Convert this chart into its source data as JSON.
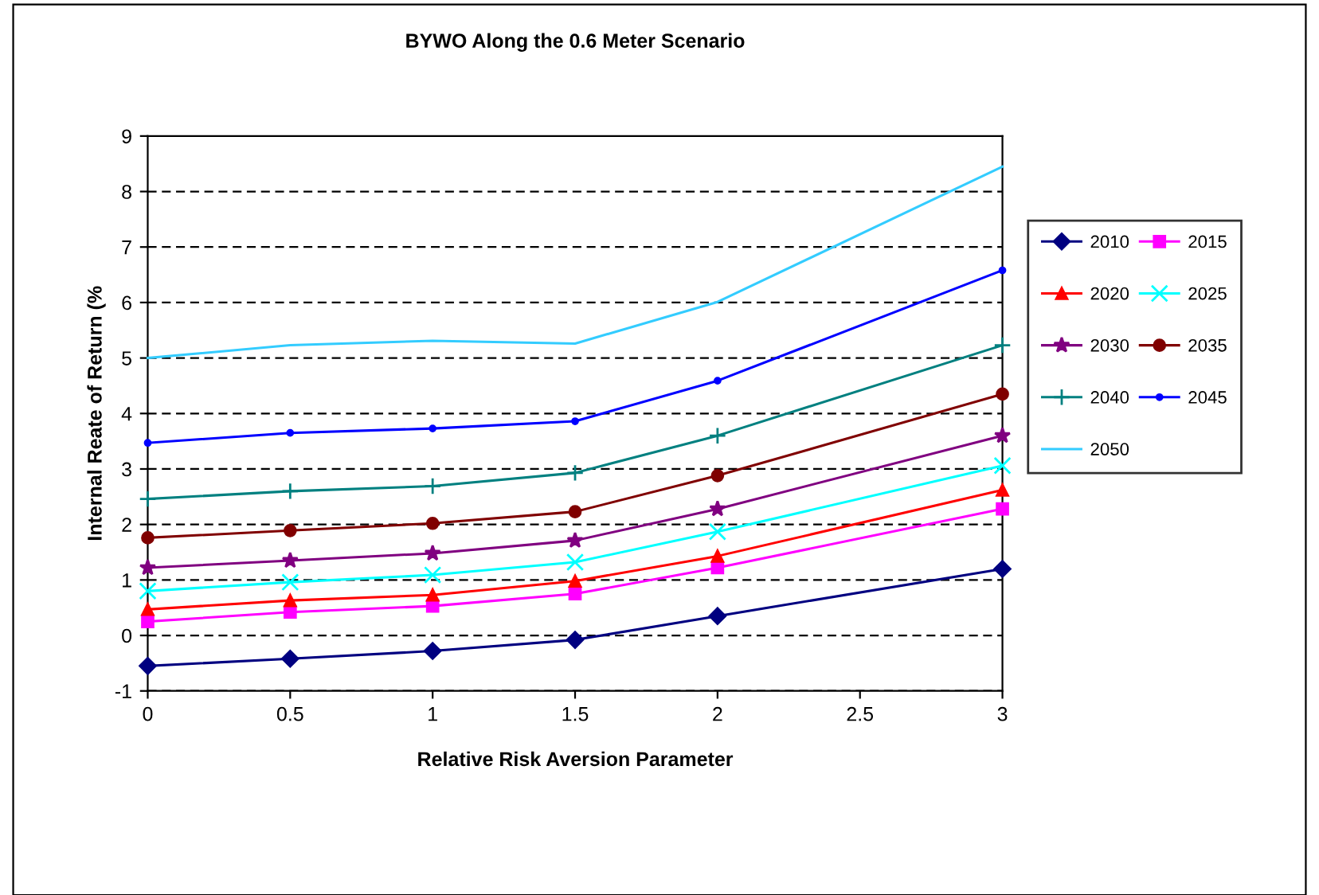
{
  "chart_data": {
    "type": "line",
    "title": "BYWO Along the 0.6 Meter Scenario",
    "xlabel": "Relative Risk Aversion Parameter",
    "ylabel": "Internal Reate of Return (%",
    "x": [
      0,
      0.5,
      1,
      1.5,
      2,
      3
    ],
    "xlim": [
      0,
      3
    ],
    "xticks": [
      0,
      0.5,
      1,
      1.5,
      2,
      2.5,
      3
    ],
    "ylim": [
      -1,
      9
    ],
    "yticks": [
      -1,
      0,
      1,
      2,
      3,
      4,
      5,
      6,
      7,
      8,
      9
    ],
    "grid": "y",
    "legend": "right",
    "series": [
      {
        "name": "2010",
        "color": "#000080",
        "marker": "diamond",
        "values": [
          -0.55,
          -0.42,
          -0.28,
          -0.08,
          0.35,
          1.2
        ]
      },
      {
        "name": "2015",
        "color": "#ff00ff",
        "marker": "square",
        "values": [
          0.25,
          0.42,
          0.53,
          0.75,
          1.22,
          2.28
        ]
      },
      {
        "name": "2020",
        "color": "#ff0000",
        "marker": "triangle",
        "values": [
          0.47,
          0.63,
          0.73,
          0.98,
          1.43,
          2.62
        ]
      },
      {
        "name": "2025",
        "color": "#00ffff",
        "marker": "cross",
        "values": [
          0.8,
          0.96,
          1.09,
          1.32,
          1.87,
          3.06
        ]
      },
      {
        "name": "2030",
        "color": "#800080",
        "marker": "star",
        "values": [
          1.22,
          1.35,
          1.48,
          1.71,
          2.28,
          3.6
        ]
      },
      {
        "name": "2035",
        "color": "#800000",
        "marker": "circle",
        "values": [
          1.76,
          1.89,
          2.02,
          2.23,
          2.88,
          4.35
        ]
      },
      {
        "name": "2040",
        "color": "#008080",
        "marker": "plus",
        "values": [
          2.46,
          2.6,
          2.69,
          2.93,
          3.6,
          5.23
        ]
      },
      {
        "name": "2045",
        "color": "#0000ff",
        "marker": "point",
        "values": [
          3.47,
          3.65,
          3.73,
          3.86,
          4.59,
          6.58
        ]
      },
      {
        "name": "2050",
        "color": "#33ccff",
        "marker": "none",
        "values": [
          5.0,
          5.23,
          5.31,
          5.26,
          6.01,
          8.45
        ]
      }
    ]
  }
}
